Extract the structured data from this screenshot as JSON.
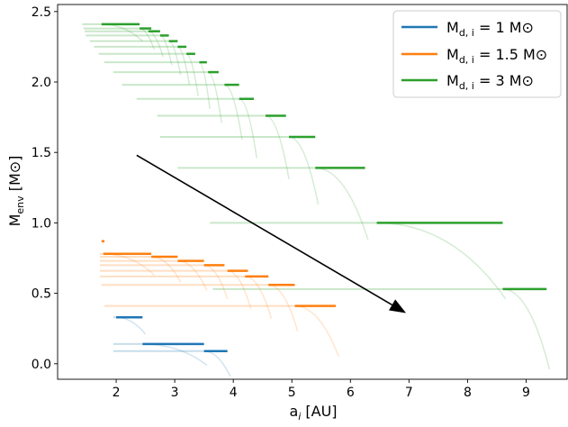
{
  "chart_data": {
    "type": "line",
    "xlabel_main": "a",
    "xlabel_sub": "i",
    "xlabel_unit": " [AU]",
    "ylabel_main": "M",
    "ylabel_sub": "env",
    "ylabel_unit": " [M⊙]",
    "xlim": [
      1.0,
      9.7
    ],
    "ylim": [
      -0.11,
      2.55
    ],
    "xticks": [
      2,
      3,
      4,
      5,
      6,
      7,
      8,
      9
    ],
    "yticks": [
      0.0,
      0.5,
      1.0,
      1.5,
      2.0,
      2.5
    ],
    "grid": false,
    "legend_position": "top-right",
    "legend": [
      {
        "prefix": "M",
        "sub": "d, i",
        "suffix": " = 1 M⊙",
        "color": "#1f77b4"
      },
      {
        "prefix": "M",
        "sub": "d, i",
        "suffix": " = 1.5 M⊙",
        "color": "#ff7f0e"
      },
      {
        "prefix": "M",
        "sub": "d, i",
        "suffix": " = 3 M⊙",
        "color": "#2ca02c"
      }
    ],
    "arrow": {
      "from": [
        2.35,
        1.48
      ],
      "to": [
        6.95,
        0.36
      ]
    },
    "series": [
      {
        "color": "#2ca02c",
        "tracks": [
          {
            "y": 2.41,
            "x_start": 1.42,
            "x_dark": 1.75,
            "x_end": 2.4
          },
          {
            "y": 2.38,
            "x_start": 1.44,
            "x_dark": 2.4,
            "x_end": 2.6
          },
          {
            "y": 2.36,
            "x_start": 1.46,
            "x_dark": 2.55,
            "x_end": 2.75
          },
          {
            "y": 2.33,
            "x_start": 1.48,
            "x_dark": 2.75,
            "x_end": 2.9
          },
          {
            "y": 2.29,
            "x_start": 1.55,
            "x_dark": 2.9,
            "x_end": 3.05
          },
          {
            "y": 2.25,
            "x_start": 1.62,
            "x_dark": 3.05,
            "x_end": 3.2
          },
          {
            "y": 2.2,
            "x_start": 1.7,
            "x_dark": 3.2,
            "x_end": 3.35
          },
          {
            "y": 2.14,
            "x_start": 1.8,
            "x_dark": 3.42,
            "x_end": 3.55
          },
          {
            "y": 2.07,
            "x_start": 1.95,
            "x_dark": 3.57,
            "x_end": 3.75
          },
          {
            "y": 1.98,
            "x_start": 2.1,
            "x_dark": 3.85,
            "x_end": 4.1
          },
          {
            "y": 1.88,
            "x_start": 2.35,
            "x_dark": 4.1,
            "x_end": 4.35
          },
          {
            "y": 1.76,
            "x_start": 2.7,
            "x_dark": 4.55,
            "x_end": 4.9
          },
          {
            "y": 1.61,
            "x_start": 2.75,
            "x_dark": 4.95,
            "x_end": 5.4
          },
          {
            "y": 1.39,
            "x_start": 3.05,
            "x_dark": 5.4,
            "x_end": 6.25
          },
          {
            "y": 1.0,
            "x_start": 3.6,
            "x_dark": 6.45,
            "x_end": 8.6
          },
          {
            "y": 0.53,
            "x_start": 3.65,
            "x_dark": 8.6,
            "x_end": 9.35
          }
        ]
      },
      {
        "color": "#ff7f0e",
        "tracks": [
          {
            "y": 0.87,
            "x_start": 1.75,
            "x_dark": 1.75,
            "x_end": 1.8
          },
          {
            "y": 0.78,
            "x_start": 1.72,
            "x_dark": 1.78,
            "x_end": 2.6
          },
          {
            "y": 0.76,
            "x_start": 1.72,
            "x_dark": 2.6,
            "x_end": 3.05
          },
          {
            "y": 0.73,
            "x_start": 1.72,
            "x_dark": 3.05,
            "x_end": 3.5
          },
          {
            "y": 0.7,
            "x_start": 1.72,
            "x_dark": 3.5,
            "x_end": 3.85
          },
          {
            "y": 0.66,
            "x_start": 1.72,
            "x_dark": 3.9,
            "x_end": 4.25
          },
          {
            "y": 0.62,
            "x_start": 1.72,
            "x_dark": 4.2,
            "x_end": 4.6
          },
          {
            "y": 0.56,
            "x_start": 1.75,
            "x_dark": 4.6,
            "x_end": 5.05
          },
          {
            "y": 0.41,
            "x_start": 1.8,
            "x_dark": 5.05,
            "x_end": 5.75
          }
        ]
      },
      {
        "color": "#1f77b4",
        "tracks": [
          {
            "y": 0.33,
            "x_start": 1.95,
            "x_dark": 2.0,
            "x_end": 2.45
          },
          {
            "y": 0.14,
            "x_start": 1.95,
            "x_dark": 2.45,
            "x_end": 3.5
          },
          {
            "y": 0.09,
            "x_start": 1.95,
            "x_dark": 3.5,
            "x_end": 3.9
          }
        ]
      }
    ]
  }
}
